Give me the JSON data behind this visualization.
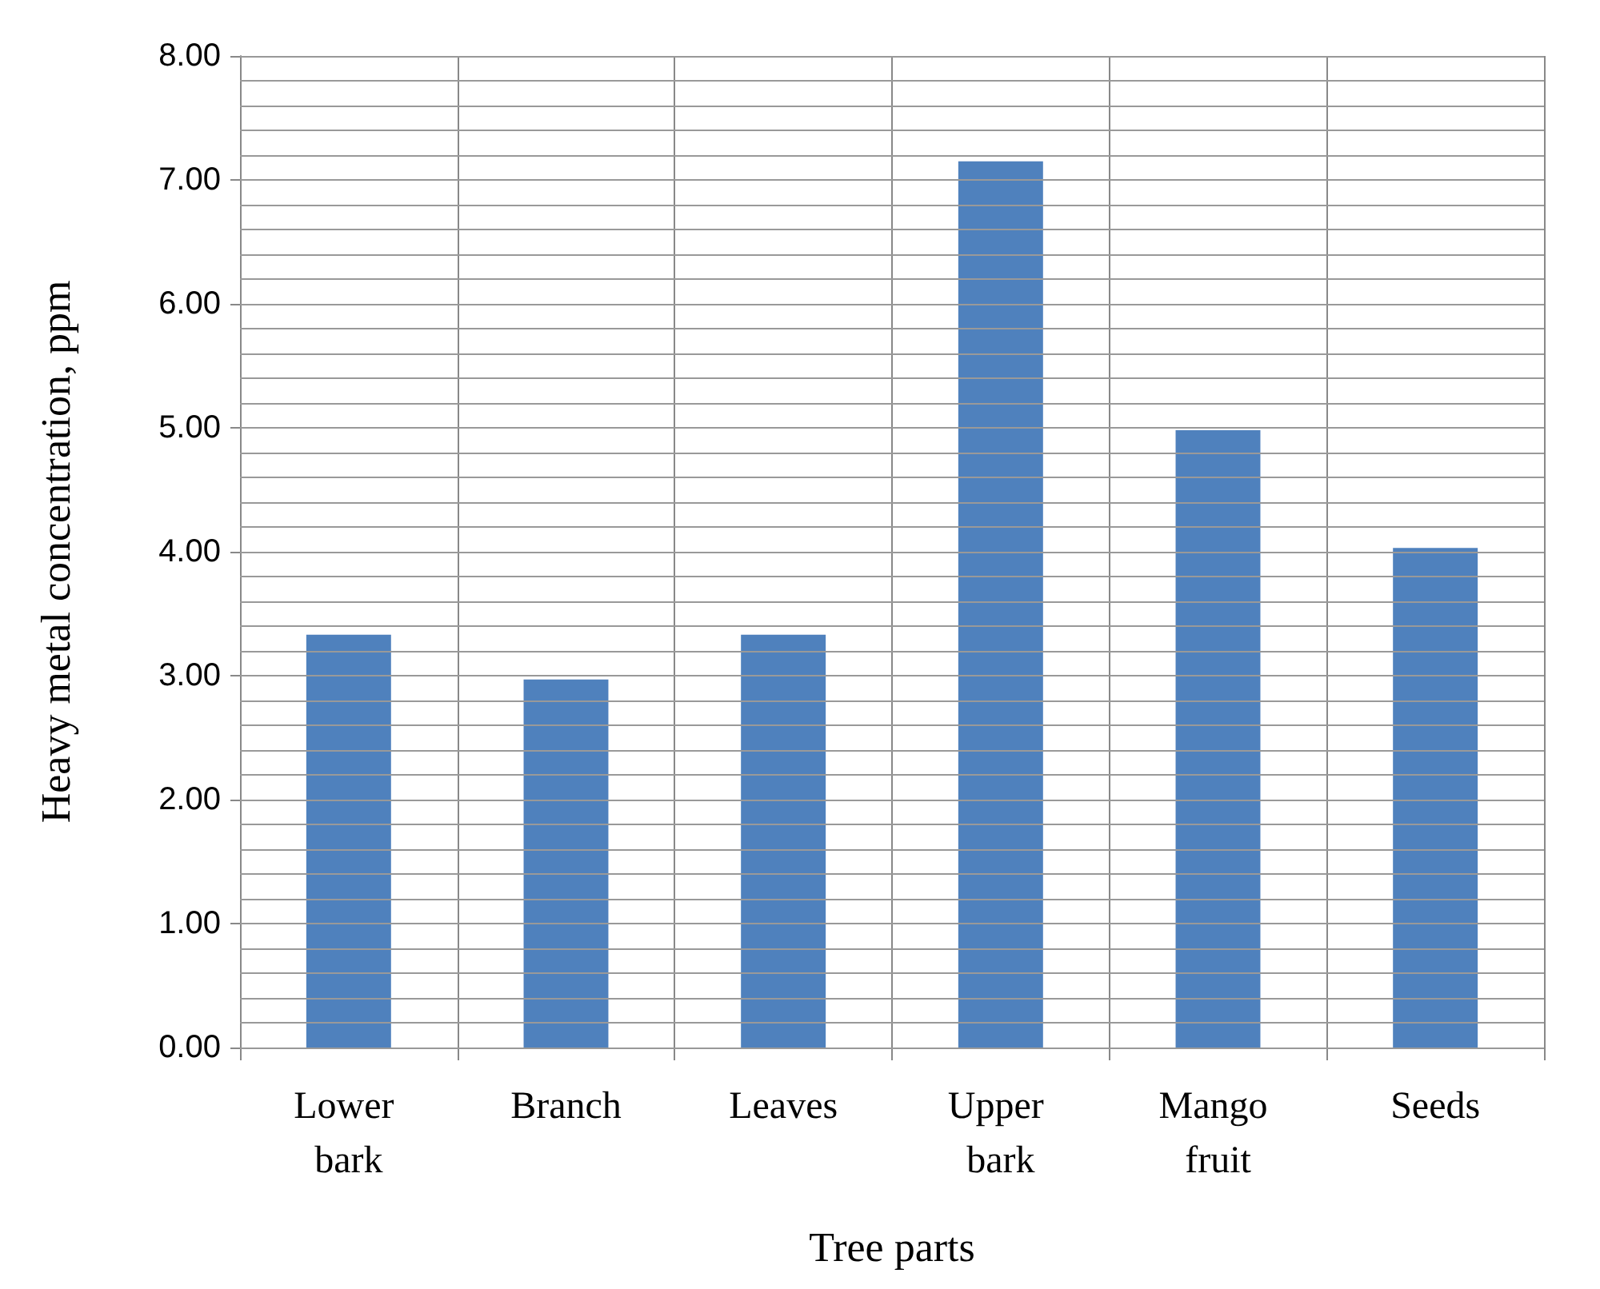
{
  "chart_data": {
    "type": "bar",
    "xlabel": "Tree parts",
    "ylabel": "Heavy metal concentration, ppm",
    "categories": [
      "Lower bark",
      "Branch",
      "Leaves",
      "Upper bark",
      "Mango fruit",
      "Seeds"
    ],
    "values": [
      3.33,
      2.97,
      3.33,
      7.15,
      4.98,
      4.03
    ],
    "color": "#4f81bd",
    "ylim": [
      0,
      8
    ],
    "yticks": [
      {
        "value": 0,
        "label": "0.00"
      },
      {
        "value": 0.2,
        "label": null
      },
      {
        "value": 0.4,
        "label": null
      },
      {
        "value": 0.6,
        "label": null
      },
      {
        "value": 0.8,
        "label": null
      },
      {
        "value": 1,
        "label": "1.00"
      },
      {
        "value": 1.2,
        "label": null
      },
      {
        "value": 1.4,
        "label": null
      },
      {
        "value": 1.6,
        "label": null
      },
      {
        "value": 1.8,
        "label": null
      },
      {
        "value": 2,
        "label": "2.00"
      },
      {
        "value": 2.2,
        "label": null
      },
      {
        "value": 2.4,
        "label": null
      },
      {
        "value": 2.6,
        "label": null
      },
      {
        "value": 2.8,
        "label": null
      },
      {
        "value": 3,
        "label": "3.00"
      },
      {
        "value": 3.2,
        "label": null
      },
      {
        "value": 3.4,
        "label": null
      },
      {
        "value": 3.6,
        "label": null
      },
      {
        "value": 3.8,
        "label": null
      },
      {
        "value": 4,
        "label": "4.00"
      },
      {
        "value": 4.2,
        "label": null
      },
      {
        "value": 4.4,
        "label": null
      },
      {
        "value": 4.6,
        "label": null
      },
      {
        "value": 4.8,
        "label": null
      },
      {
        "value": 5,
        "label": "5.00"
      },
      {
        "value": 5.2,
        "label": null
      },
      {
        "value": 5.4,
        "label": null
      },
      {
        "value": 5.6,
        "label": null
      },
      {
        "value": 5.8,
        "label": null
      },
      {
        "value": 6,
        "label": "6.00"
      },
      {
        "value": 6.2,
        "label": null
      },
      {
        "value": 6.4,
        "label": null
      },
      {
        "value": 6.6,
        "label": null
      },
      {
        "value": 6.8,
        "label": null
      },
      {
        "value": 7,
        "label": "7.00"
      },
      {
        "value": 7.2,
        "label": null
      },
      {
        "value": 7.4,
        "label": null
      },
      {
        "value": 7.6,
        "label": null
      },
      {
        "value": 7.8,
        "label": null
      },
      {
        "value": 8,
        "label": "8.00"
      }
    ],
    "grid": true
  }
}
